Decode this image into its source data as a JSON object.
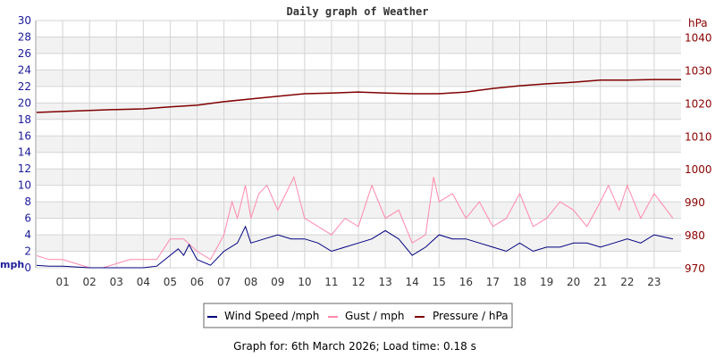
{
  "chart_data": {
    "type": "line",
    "title": "Daily graph of Weather",
    "footer": "Graph for: 6th March 2026; Load time: 0.18 s",
    "ylabel_left": "mph",
    "ylabel_right": "hPa",
    "xlim": [
      0,
      24
    ],
    "ylim_left": [
      0,
      30
    ],
    "ylim_right": [
      970,
      1045
    ],
    "x_ticks": [
      "01",
      "02",
      "03",
      "04",
      "05",
      "06",
      "07",
      "08",
      "09",
      "10",
      "11",
      "12",
      "13",
      "14",
      "15",
      "16",
      "17",
      "18",
      "19",
      "20",
      "21",
      "22",
      "23"
    ],
    "y_ticks_left": [
      "0",
      "2",
      "4",
      "6",
      "8",
      "10",
      "12",
      "14",
      "16",
      "18",
      "20",
      "22",
      "24",
      "26",
      "28",
      "30"
    ],
    "y_ticks_right": [
      "970",
      "980",
      "990",
      "1000",
      "1010",
      "1020",
      "1030",
      "1040"
    ],
    "grid": true,
    "legend_position": "bottom",
    "colors": {
      "left_axis": "#1a1a99",
      "right_axis": "#8b0000",
      "band": "#f2f2f2",
      "grid": "#d4d4d4"
    },
    "series": [
      {
        "name": "Wind Speed /mph",
        "axis": "left",
        "color": "#000080",
        "x": [
          0,
          0.5,
          1,
          1.5,
          2,
          2.5,
          3,
          3.5,
          4,
          4.5,
          5,
          5.3,
          5.5,
          5.7,
          6,
          6.5,
          7,
          7.5,
          7.8,
          8,
          8.5,
          9,
          9.5,
          10,
          10.5,
          11,
          11.5,
          12,
          12.5,
          13,
          13.5,
          14,
          14.5,
          15,
          15.5,
          16,
          16.5,
          17,
          17.5,
          18,
          18.5,
          19,
          19.5,
          20,
          20.5,
          21,
          21.5,
          22,
          22.5,
          23,
          23.7
        ],
        "y": [
          0.3,
          0.2,
          0.2,
          0.1,
          0,
          0,
          0,
          0,
          0,
          0.2,
          1.5,
          2.3,
          1.5,
          2.8,
          1.0,
          0.3,
          2.0,
          3.0,
          5.0,
          3.0,
          3.5,
          4.0,
          3.5,
          3.5,
          3.0,
          2.0,
          2.5,
          3.0,
          3.5,
          4.5,
          3.5,
          1.5,
          2.5,
          4.0,
          3.5,
          3.5,
          3.0,
          2.5,
          2.0,
          3.0,
          2.0,
          2.5,
          2.5,
          3.0,
          3.0,
          2.5,
          3.0,
          3.5,
          3.0,
          4.0,
          3.5
        ]
      },
      {
        "name": "Gust / mph",
        "axis": "left",
        "color": "#ff88aa",
        "x": [
          0,
          0.5,
          1,
          1.5,
          2,
          2.5,
          3,
          3.5,
          4,
          4.5,
          5,
          5.5,
          6,
          6.5,
          7,
          7.3,
          7.5,
          7.8,
          8,
          8.3,
          8.6,
          9,
          9.3,
          9.6,
          10,
          10.5,
          11,
          11.5,
          12,
          12.5,
          13,
          13.5,
          14,
          14.5,
          14.8,
          15,
          15.5,
          16,
          16.5,
          17,
          17.5,
          18,
          18.5,
          19,
          19.5,
          20,
          20.5,
          21,
          21.3,
          21.7,
          22,
          22.5,
          23,
          23.7
        ],
        "y": [
          1.5,
          1,
          1,
          0.5,
          0,
          0,
          0.5,
          1,
          1,
          1,
          3.5,
          3.5,
          2,
          1,
          4,
          8,
          6,
          10,
          6,
          9,
          10,
          7,
          9,
          11,
          6,
          5,
          4,
          6,
          5,
          10,
          6,
          7,
          3,
          4,
          11,
          8,
          9,
          6,
          8,
          5,
          6,
          9,
          5,
          6,
          8,
          7,
          5,
          8,
          10,
          7,
          10,
          6,
          9,
          6
        ]
      },
      {
        "name": "Pressure / hPa",
        "axis": "right",
        "color": "#800000",
        "x": [
          0,
          1,
          2,
          3,
          4,
          5,
          6,
          7,
          8,
          9,
          10,
          11,
          12,
          13,
          14,
          15,
          16,
          17,
          18,
          19,
          20,
          21,
          22,
          23,
          24
        ],
        "y": [
          1017.1,
          1017.4,
          1017.7,
          1018.0,
          1018.2,
          1018.8,
          1019.3,
          1020.4,
          1021.2,
          1022.0,
          1022.8,
          1023.0,
          1023.3,
          1023.0,
          1022.8,
          1022.8,
          1023.3,
          1024.4,
          1025.2,
          1025.8,
          1026.3,
          1026.9,
          1026.9,
          1027.1,
          1027.1
        ]
      }
    ]
  }
}
